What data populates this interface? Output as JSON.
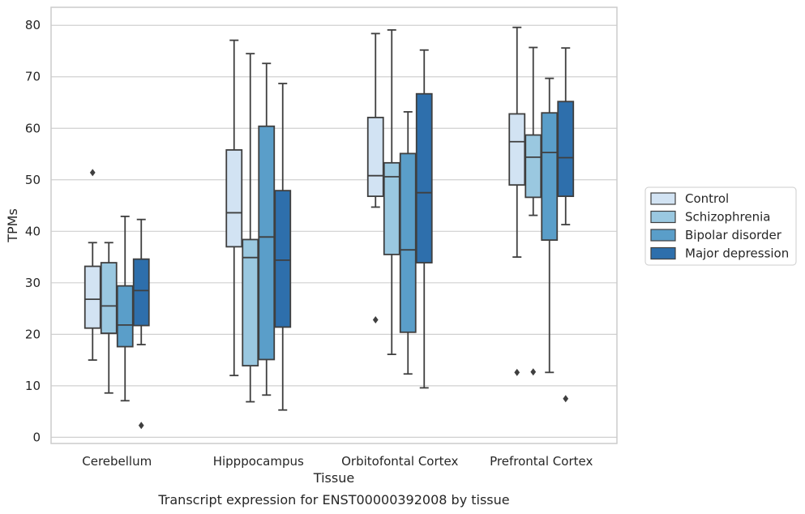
{
  "caption": "Transcript expression for ENST00000392008 by tissue",
  "chart_data": {
    "type": "boxplot",
    "xlabel": "Tissue",
    "ylabel": "TPMs",
    "ylim": [
      -1.2,
      83.5
    ],
    "yticks": [
      0,
      10,
      20,
      30,
      40,
      50,
      60,
      70,
      80
    ],
    "grid": "horizontal",
    "legend_position": "right",
    "categories": [
      "Cerebellum",
      "Hipppocampus",
      "Orbitofontal Cortex",
      "Prefrontal Cortex"
    ],
    "series": [
      {
        "name": "Control",
        "color": "#d2e3f3",
        "boxes": [
          {
            "whislo": 15.0,
            "q1": 21.2,
            "med": 26.8,
            "q3": 33.2,
            "whishi": 37.8,
            "fliers": [
              51.4
            ]
          },
          {
            "whislo": 12.0,
            "q1": 37.0,
            "med": 43.6,
            "q3": 55.8,
            "whishi": 77.1,
            "fliers": []
          },
          {
            "whislo": 44.7,
            "q1": 46.8,
            "med": 50.8,
            "q3": 62.1,
            "whishi": 78.4,
            "fliers": [
              22.8
            ]
          },
          {
            "whislo": 35.0,
            "q1": 49.0,
            "med": 57.4,
            "q3": 62.8,
            "whishi": 79.6,
            "fliers": [
              12.6
            ]
          }
        ]
      },
      {
        "name": "Schizophrenia",
        "color": "#9ac8e0",
        "boxes": [
          {
            "whislo": 8.6,
            "q1": 20.2,
            "med": 25.5,
            "q3": 33.9,
            "whishi": 37.8,
            "fliers": []
          },
          {
            "whislo": 6.9,
            "q1": 13.9,
            "med": 34.9,
            "q3": 38.4,
            "whishi": 74.5,
            "fliers": []
          },
          {
            "whislo": 16.1,
            "q1": 35.5,
            "med": 50.6,
            "q3": 53.3,
            "whishi": 79.1,
            "fliers": []
          },
          {
            "whislo": 43.1,
            "q1": 46.6,
            "med": 54.4,
            "q3": 58.7,
            "whishi": 75.7,
            "fliers": [
              12.7
            ]
          }
        ]
      },
      {
        "name": "Bipolar disorder",
        "color": "#5a9ec9",
        "boxes": [
          {
            "whislo": 7.1,
            "q1": 17.6,
            "med": 21.8,
            "q3": 29.4,
            "whishi": 42.9,
            "fliers": []
          },
          {
            "whislo": 8.2,
            "q1": 15.1,
            "med": 38.9,
            "q3": 60.4,
            "whishi": 72.6,
            "fliers": []
          },
          {
            "whislo": 12.3,
            "q1": 20.4,
            "med": 36.4,
            "q3": 55.1,
            "whishi": 63.2,
            "fliers": []
          },
          {
            "whislo": 12.6,
            "q1": 38.3,
            "med": 55.3,
            "q3": 63.0,
            "whishi": 69.7,
            "fliers": []
          }
        ]
      },
      {
        "name": "Major depression",
        "color": "#2e6fac",
        "boxes": [
          {
            "whislo": 18.0,
            "q1": 21.7,
            "med": 28.5,
            "q3": 34.6,
            "whishi": 42.3,
            "fliers": [
              2.3
            ]
          },
          {
            "whislo": 5.3,
            "q1": 21.4,
            "med": 34.4,
            "q3": 47.9,
            "whishi": 68.7,
            "fliers": []
          },
          {
            "whislo": 9.6,
            "q1": 33.9,
            "med": 47.5,
            "q3": 66.7,
            "whishi": 75.2,
            "fliers": []
          },
          {
            "whislo": 41.3,
            "q1": 46.8,
            "med": 54.3,
            "q3": 65.2,
            "whishi": 75.6,
            "fliers": [
              7.5
            ]
          }
        ]
      }
    ]
  }
}
